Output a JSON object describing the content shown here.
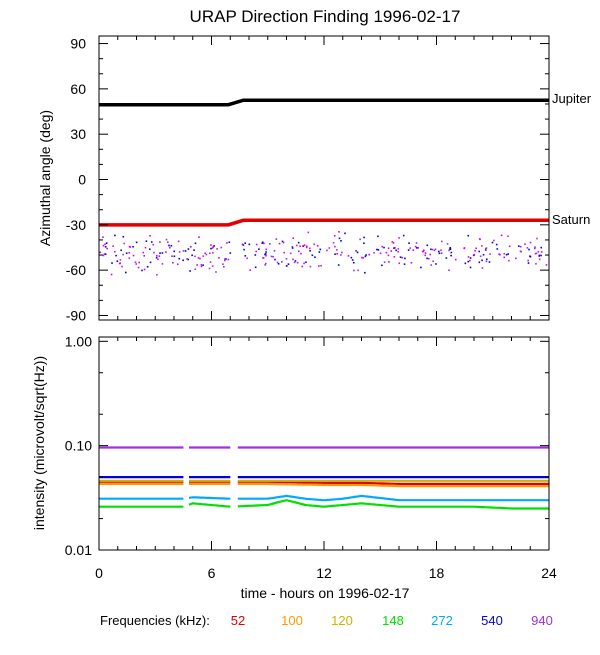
{
  "chart_data": [
    {
      "type": "line",
      "title": "URAP Direction Finding  1996-02-17",
      "ylabel": "Azimuthal angle (deg)",
      "xlim": [
        0,
        24
      ],
      "ylim": [
        -93,
        95
      ],
      "yticks": [
        90,
        60,
        30,
        0,
        -30,
        -60,
        -90
      ],
      "grid": false,
      "series": [
        {
          "name": "Jupiter",
          "color": "#000000",
          "x": [
            0,
            6.9,
            7.7,
            24
          ],
          "y": [
            49.5,
            49.5,
            52.5,
            52.5
          ]
        },
        {
          "name": "Saturn",
          "color": "#e00000",
          "x": [
            0,
            6.9,
            7.7,
            24
          ],
          "y": [
            -30,
            -30,
            -27,
            -27
          ]
        }
      ],
      "scatter": {
        "name": "",
        "colors": [
          "#0000e0",
          "#a030e0",
          "#e000e0"
        ],
        "x_range": [
          0,
          24
        ],
        "y_range": [
          -63,
          -33
        ]
      }
    },
    {
      "type": "line",
      "ylabel": "intensity (microvolt/sqrt(Hz))",
      "xlabel": "time - hours on 1996-02-17",
      "xlim": [
        0,
        24
      ],
      "ylim": [
        0.01,
        1.1
      ],
      "y_scale": "log",
      "xticks": [
        "0",
        "6",
        "12",
        "18",
        "24"
      ],
      "yticks": [
        "1.00",
        "0.10",
        "0.01"
      ],
      "gaps": [
        [
          4.6,
          4.8
        ],
        [
          7.0,
          7.3
        ]
      ],
      "series": [
        {
          "name": "52",
          "color": "#e00000",
          "x": [
            0,
            7,
            9,
            12,
            14,
            16,
            18,
            20,
            22,
            24
          ],
          "y": [
            0.045,
            0.045,
            0.045,
            0.044,
            0.044,
            0.043,
            0.043,
            0.043,
            0.043,
            0.043
          ]
        },
        {
          "name": "100",
          "color": "#ff9900",
          "x": [
            0,
            7,
            9,
            12,
            14,
            16,
            18,
            20,
            22,
            24
          ],
          "y": [
            0.043,
            0.043,
            0.043,
            0.042,
            0.042,
            0.041,
            0.041,
            0.041,
            0.041,
            0.041
          ]
        },
        {
          "name": "120",
          "color": "#d0b000",
          "x": [
            0,
            7,
            9,
            12,
            14,
            16,
            18,
            20,
            22,
            24
          ],
          "y": [
            0.046,
            0.046,
            0.046,
            0.046,
            0.046,
            0.046,
            0.046,
            0.046,
            0.046,
            0.046
          ]
        },
        {
          "name": "148",
          "color": "#00e000",
          "x": [
            0,
            4.5,
            5,
            7,
            9,
            10,
            11,
            12,
            13,
            14,
            16,
            18,
            20,
            22,
            24
          ],
          "y": [
            0.026,
            0.026,
            0.028,
            0.026,
            0.027,
            0.03,
            0.027,
            0.026,
            0.027,
            0.028,
            0.026,
            0.026,
            0.026,
            0.025,
            0.025
          ]
        },
        {
          "name": "272",
          "color": "#00a8ff",
          "x": [
            0,
            4.5,
            5,
            7,
            9,
            10,
            11,
            12,
            13,
            14,
            16,
            18,
            20,
            22,
            24
          ],
          "y": [
            0.031,
            0.031,
            0.032,
            0.031,
            0.031,
            0.033,
            0.031,
            0.03,
            0.031,
            0.033,
            0.03,
            0.03,
            0.03,
            0.03,
            0.03
          ]
        },
        {
          "name": "540",
          "color": "#0000e0",
          "x": [
            0,
            24
          ],
          "y": [
            0.05,
            0.05
          ]
        },
        {
          "name": "940",
          "color": "#a030e0",
          "x": [
            0,
            24
          ],
          "y": [
            0.096,
            0.096
          ]
        }
      ]
    }
  ],
  "legend": {
    "label": "Frequencies (kHz):",
    "placement": "bottom"
  }
}
